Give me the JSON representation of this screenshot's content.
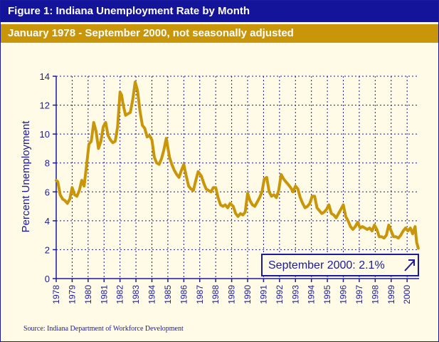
{
  "header": {
    "title": "Figure 1: Indiana Unemployment Rate by Month",
    "subtitle": "January 1978 - September 2000, not seasonally adjusted"
  },
  "source": "Source: Indiana Department of Workforce Development",
  "callout": {
    "text": "September 2000:  2.1%"
  },
  "colors": {
    "line": "#c9960a",
    "axis": "#1a1aa0",
    "title_bg": "#14149a",
    "subtitle_bg": "#c9960a",
    "background": "#fffbe6"
  },
  "chart_data": {
    "type": "line",
    "title": "Figure 1: Indiana Unemployment Rate by Month",
    "subtitle": "January 1978 - September 2000, not seasonally adjusted",
    "xlabel": "",
    "ylabel": "Percent Unemployment",
    "xlim": [
      1978.0,
      2000.75
    ],
    "ylim": [
      0,
      14
    ],
    "yticks": [
      0,
      2,
      4,
      6,
      8,
      10,
      12,
      14
    ],
    "xticks": [
      "1978",
      "1979",
      "1980",
      "1981",
      "1982",
      "1983",
      "1984",
      "1985",
      "1986",
      "1987",
      "1988",
      "1989",
      "1990",
      "1991",
      "1992",
      "1993",
      "1994",
      "1995",
      "1996",
      "1997",
      "1998",
      "1999",
      "2000"
    ],
    "grid": true,
    "legend": "none",
    "series": [
      {
        "x": [
          1978.0,
          1978.1,
          1978.25,
          1978.4,
          1978.55,
          1978.7,
          1978.85,
          1979.0,
          1979.15,
          1979.3,
          1979.45,
          1979.6,
          1979.75,
          1979.9,
          1980.05,
          1980.2,
          1980.35,
          1980.5,
          1980.65,
          1980.8,
          1980.95,
          1981.1,
          1981.25,
          1981.4,
          1981.55,
          1981.7,
          1981.85,
          1982.0,
          1982.1,
          1982.2,
          1982.35,
          1982.5,
          1982.65,
          1982.8,
          1982.95,
          1983.1,
          1983.25,
          1983.4,
          1983.55,
          1983.7,
          1983.85,
          1984.0,
          1984.15,
          1984.3,
          1984.45,
          1984.6,
          1984.75,
          1984.9,
          1985.1,
          1985.25,
          1985.4,
          1985.55,
          1985.7,
          1985.85,
          1986.0,
          1986.15,
          1986.3,
          1986.45,
          1986.6,
          1986.75,
          1986.9,
          1987.1,
          1987.25,
          1987.4,
          1987.55,
          1987.7,
          1987.85,
          1988.0,
          1988.15,
          1988.3,
          1988.45,
          1988.6,
          1988.75,
          1988.9,
          1989.1,
          1989.25,
          1989.4,
          1989.55,
          1989.7,
          1989.85,
          1990.0,
          1990.15,
          1990.3,
          1990.45,
          1990.6,
          1990.75,
          1990.9,
          1991.05,
          1991.2,
          1991.35,
          1991.5,
          1991.65,
          1991.8,
          1991.95,
          1992.1,
          1992.25,
          1992.4,
          1992.55,
          1992.7,
          1992.85,
          1993.0,
          1993.15,
          1993.3,
          1993.45,
          1993.6,
          1993.75,
          1993.9,
          1994.05,
          1994.2,
          1994.35,
          1994.5,
          1994.65,
          1994.8,
          1994.95,
          1995.1,
          1995.25,
          1995.4,
          1995.55,
          1995.7,
          1995.85,
          1996.0,
          1996.15,
          1996.3,
          1996.45,
          1996.6,
          1996.75,
          1996.9,
          1997.05,
          1997.2,
          1997.35,
          1997.5,
          1997.65,
          1997.8,
          1997.95,
          1998.1,
          1998.25,
          1998.4,
          1998.55,
          1998.7,
          1998.85,
          1999.0,
          1999.15,
          1999.3,
          1999.45,
          1999.6,
          1999.75,
          1999.9,
          2000.05,
          2000.2,
          2000.35,
          2000.5,
          2000.6,
          2000.7
        ],
        "values": [
          6.8,
          6.7,
          5.8,
          5.5,
          5.4,
          5.2,
          5.5,
          6.3,
          5.8,
          5.7,
          6.1,
          6.8,
          6.4,
          7.8,
          9.3,
          9.5,
          10.8,
          10.2,
          9.0,
          9.5,
          10.5,
          10.8,
          9.9,
          9.6,
          9.4,
          9.5,
          10.5,
          12.9,
          12.7,
          12.0,
          11.3,
          11.4,
          11.5,
          12.4,
          13.6,
          13.0,
          11.6,
          10.6,
          10.4,
          9.8,
          9.9,
          9.6,
          8.4,
          8.0,
          7.9,
          8.3,
          8.9,
          9.7,
          8.4,
          7.9,
          7.5,
          7.2,
          7.0,
          7.5,
          7.9,
          7.1,
          6.4,
          6.2,
          6.1,
          6.8,
          7.4,
          7.1,
          6.6,
          6.2,
          6.1,
          6.0,
          6.3,
          6.3,
          5.6,
          5.1,
          5.0,
          5.1,
          4.9,
          5.2,
          5.0,
          4.5,
          4.3,
          4.5,
          4.4,
          4.6,
          5.9,
          5.4,
          5.1,
          5.0,
          5.3,
          5.6,
          6.0,
          6.9,
          7.0,
          6.0,
          5.7,
          5.8,
          5.6,
          6.1,
          7.2,
          6.9,
          6.7,
          6.5,
          6.3,
          6.0,
          6.4,
          6.2,
          5.6,
          5.2,
          4.9,
          5.0,
          5.2,
          5.7,
          5.7,
          4.9,
          4.7,
          4.5,
          4.6,
          4.8,
          5.1,
          4.5,
          4.4,
          4.2,
          4.5,
          4.8,
          5.1,
          4.3,
          4.0,
          3.6,
          3.4,
          3.6,
          3.9,
          3.5,
          3.6,
          3.5,
          3.4,
          3.5,
          3.3,
          3.7,
          3.4,
          2.9,
          2.9,
          2.8,
          3.0,
          3.7,
          3.3,
          2.9,
          2.9,
          2.8,
          3.0,
          3.3,
          3.5,
          3.3,
          3.5,
          3.1,
          3.6,
          2.5,
          2.1
        ]
      }
    ],
    "annotations": [
      {
        "text": "September 2000:  2.1%",
        "x": 2000.7,
        "y": 2.1
      }
    ]
  }
}
